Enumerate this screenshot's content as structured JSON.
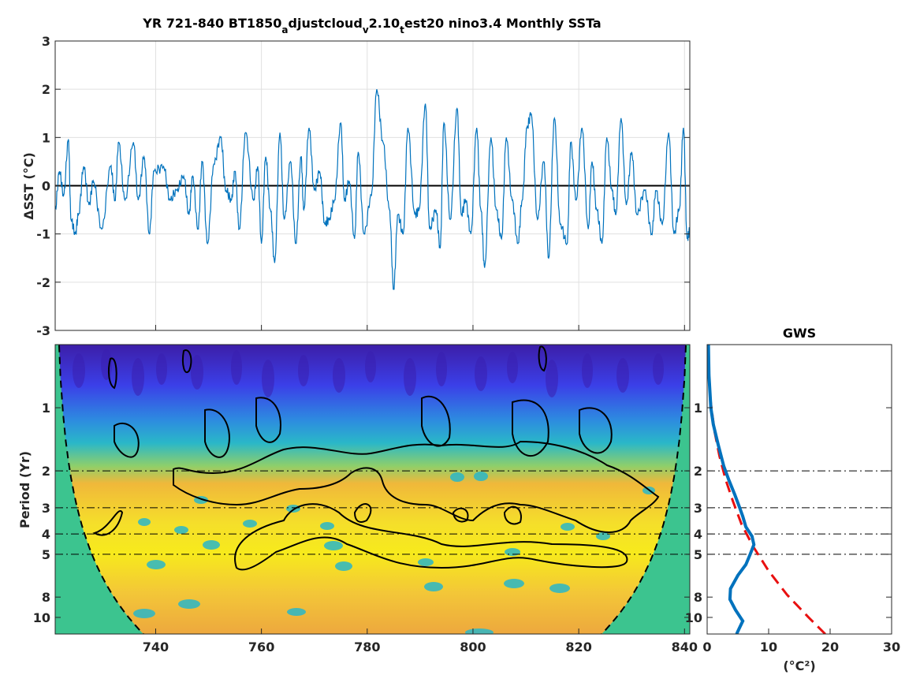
{
  "colors": {
    "series": "#0072bd",
    "zero_line": "#000000",
    "grid": "#e0e0e0",
    "gws_line": "#0072bd",
    "significance": "#e81010",
    "outside_coi": "#3cc48f",
    "cmap_low": "#3c1ea8",
    "cmap_mid": "#2ab7c8",
    "cmap_high": "#f5ef1c"
  },
  "chart_data": [
    {
      "type": "line",
      "title_parts": [
        "YR 721-840 BT1850",
        "a",
        "djustcloud",
        "v",
        "2.10",
        "t",
        "est20 nino3.4 Monthly SSTa"
      ],
      "ylabel": "ΔSST (°C)",
      "xlim": [
        721,
        841
      ],
      "ylim": [
        -3,
        3
      ],
      "xticks": [
        740,
        760,
        780,
        800,
        820,
        840
      ],
      "yticks": [
        -3,
        -2,
        -1,
        0,
        1,
        2,
        3
      ],
      "ytick_labels": [
        "-3",
        "-2",
        "-1",
        "0",
        "1",
        "2",
        "3"
      ],
      "grid": true,
      "zero_line": 0,
      "series": [
        {
          "description": "monthly SST anomaly (approximate envelope of peaks and troughs)",
          "x": [
            721,
            721.8,
            722.6,
            723.5,
            724,
            724.8,
            725.4,
            726.4,
            727.4,
            728.2,
            729.8,
            731.5,
            732.3,
            733,
            734.2,
            735.8,
            736.7,
            737.8,
            738.8,
            739.7,
            741.5,
            742.7,
            744,
            745.3,
            746.3,
            747,
            748,
            748.8,
            749.8,
            751,
            752.3,
            753.3,
            754.3,
            755,
            755.8,
            757,
            758.5,
            759.3,
            760,
            760.8,
            761.7,
            762.5,
            763.5,
            764.3,
            765.5,
            766.5,
            767.5,
            768,
            769,
            770,
            771,
            772,
            772.8,
            773.8,
            775,
            775.7,
            776.6,
            777.6,
            778.3,
            779.4,
            780.8,
            781.8,
            783,
            784.2,
            785,
            785.8,
            786.8,
            787.7,
            789,
            789.8,
            791,
            791.8,
            793,
            793.8,
            794.5,
            795.7,
            797,
            797.8,
            798.6,
            799.6,
            800.7,
            801.5,
            802.2,
            803.4,
            804.4,
            805.4,
            806.3,
            807.4,
            808.5,
            809.3,
            810.2,
            811,
            812.2,
            813.4,
            814.3,
            815.4,
            816.5,
            817.8,
            818.5,
            819.5,
            820.6,
            821.8,
            822.5,
            823.4,
            824.4,
            825.3,
            826.3,
            827,
            828,
            829,
            830,
            831,
            832.5,
            833.8,
            834.6,
            835.8,
            837,
            838,
            839,
            839.8,
            840.5,
            841
          ],
          "y": [
            -0.5,
            0.3,
            -0.2,
            0.95,
            -0.7,
            -1.0,
            -0.6,
            0.4,
            -0.4,
            0.1,
            -0.9,
            0.4,
            -0.3,
            0.9,
            -0.3,
            0.9,
            -0.3,
            0.6,
            -1.0,
            0.3,
            0.4,
            -0.3,
            -0.1,
            0.2,
            -0.6,
            0.2,
            -0.9,
            0.5,
            -1.2,
            0.45,
            1.0,
            -0.1,
            -0.3,
            0.3,
            -0.9,
            1.1,
            -0.3,
            0.4,
            -1.2,
            0.6,
            -0.5,
            -1.6,
            1.1,
            -0.7,
            0.5,
            -1.2,
            0.6,
            -0.5,
            1.2,
            -0.1,
            0.3,
            -0.8,
            -0.7,
            -0.3,
            1.3,
            -0.3,
            0.1,
            -1.1,
            0.7,
            -1.0,
            -0.2,
            2.0,
            0.9,
            -0.5,
            -2.15,
            -0.6,
            -1.0,
            1.2,
            -0.6,
            -0.5,
            1.7,
            -0.9,
            -0.5,
            -1.3,
            1.3,
            -0.7,
            1.6,
            -0.6,
            -0.3,
            -1.0,
            1.2,
            -0.5,
            -1.7,
            1.0,
            -0.5,
            -1.1,
            1.0,
            -0.3,
            -1.2,
            -0.3,
            1.2,
            1.5,
            -0.7,
            0.5,
            -1.5,
            1.4,
            -0.8,
            -1.2,
            0.9,
            -0.3,
            1.2,
            -0.9,
            0.5,
            -0.5,
            -1.2,
            1.0,
            -0.1,
            -0.6,
            1.4,
            -0.4,
            0.7,
            -0.6,
            -0.1,
            -1.0,
            -0.1,
            -0.8,
            1.1,
            -1.0,
            -0.5,
            1.2,
            -1.1,
            -0.9
          ]
        }
      ]
    },
    {
      "type": "heatmap",
      "title": "",
      "xlabel": "",
      "ylabel": "Period (Yr)",
      "xlim": [
        721,
        841
      ],
      "ylim": [
        0.5,
        12
      ],
      "yscale": "log",
      "ydirection": "reverse",
      "xticks": [
        740,
        760,
        780,
        800,
        820,
        840
      ],
      "yticks": [
        1,
        2,
        3,
        4,
        5,
        8,
        10
      ],
      "reference_periods": [
        2,
        3,
        4,
        5
      ],
      "cone_of_influence": "dashed black lines, shaded green outside",
      "significance_contours": "solid black",
      "high_power_band_periods": [
        2,
        6.5
      ],
      "peak_power_period": 4.5
    },
    {
      "type": "line",
      "title": "GWS",
      "xlabel": "(°C²)",
      "xlim": [
        0,
        30
      ],
      "xticks": [
        0,
        10,
        20,
        30
      ],
      "ylim": [
        0.5,
        12
      ],
      "yscale": "log",
      "ydirection": "reverse",
      "yticks": [
        1,
        2,
        3,
        4,
        5,
        8,
        10
      ],
      "reference_periods": [
        2,
        3,
        4,
        5
      ],
      "series": [
        {
          "description": "global wavelet spectrum",
          "style": "solid",
          "x": [
            0.2,
            0.3,
            0.6,
            1.0,
            1.8,
            2.7,
            3.5,
            4.5,
            5.3,
            5.8,
            6.3,
            7.3,
            7.6,
            7.0,
            6.3,
            5.0,
            3.8,
            3.7,
            4.6,
            5.8,
            5.2,
            4.8
          ],
          "y": [
            0.5,
            0.7,
            1.0,
            1.2,
            1.5,
            1.9,
            2.2,
            2.6,
            3.0,
            3.3,
            3.7,
            4.1,
            4.5,
            5.0,
            5.6,
            6.3,
            7.3,
            8.2,
            9.2,
            10.4,
            11.3,
            12.0
          ]
        },
        {
          "description": "significance level",
          "style": "dashed",
          "x": [
            0.1,
            0.5,
            1.2,
            2.0,
            3.0,
            4.2,
            5.6,
            7.5,
            10.0,
            13.0,
            16.5,
            19.2
          ],
          "y": [
            0.5,
            0.9,
            1.3,
            1.7,
            2.2,
            2.8,
            3.6,
            4.6,
            6.0,
            7.8,
            10.0,
            12.0
          ]
        }
      ]
    }
  ]
}
